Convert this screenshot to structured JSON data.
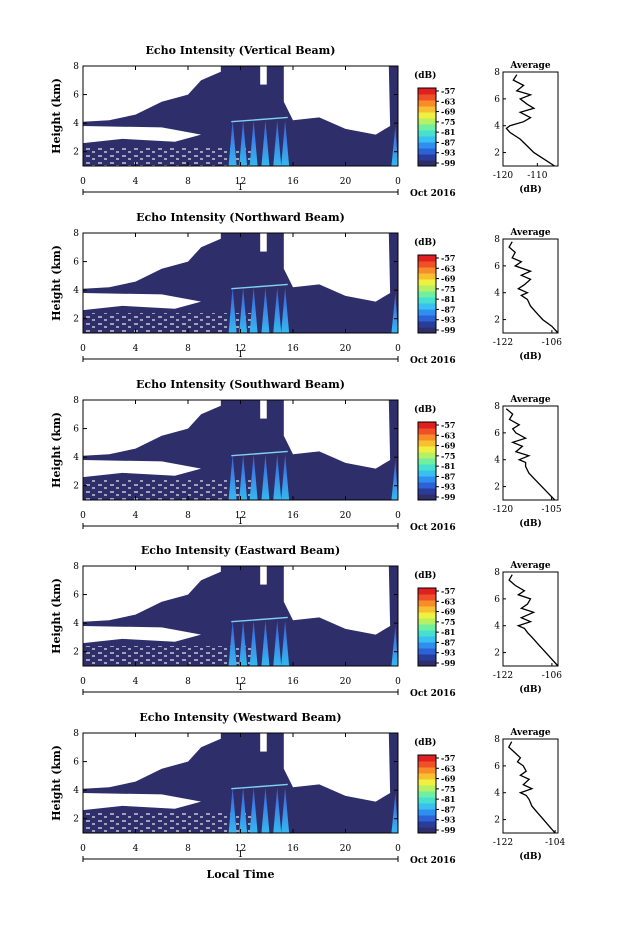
{
  "figure": {
    "xlabel": "Local Time",
    "xticks": [
      "0",
      "4",
      "8",
      "12",
      "16",
      "20",
      "0"
    ],
    "date_label": "Oct 2016",
    "day_label": "1",
    "ylabel": "Height (km)",
    "yticks": [
      "2",
      "4",
      "6",
      "8"
    ],
    "colorbar_unit": "(dB)",
    "colorbar_ticks": [
      "-57",
      "-63",
      "-69",
      "-75",
      "-81",
      "-87",
      "-93",
      "-99"
    ],
    "colorbar_colors": [
      "#2e2f6a",
      "#2a3c9a",
      "#2b62d6",
      "#2f8ff0",
      "#38c0f0",
      "#46e0d0",
      "#6ff0a0",
      "#b6f064",
      "#f0f040",
      "#f8c030",
      "#f88c28",
      "#f05028",
      "#e02020"
    ],
    "avg_title": "Average",
    "avg_xlabel": "(dB)"
  },
  "chart_data": [
    {
      "type": "heatmap",
      "title": "Echo Intensity (Vertical Beam)",
      "xlabel": "",
      "ylabel": "Height (km)",
      "xlim": [
        0,
        24
      ],
      "ylim": [
        1,
        8
      ],
      "colorbar": {
        "label": "(dB)",
        "range": [
          -99,
          -57
        ]
      },
      "profile": {
        "title": "Average",
        "xlabel": "(dB)",
        "xticks": [
          "-120",
          "-110"
        ],
        "xlim": [
          -120,
          -104
        ],
        "height": [
          1.0,
          1.5,
          2.0,
          2.5,
          3.0,
          3.5,
          3.8,
          4.0,
          4.3,
          4.6,
          5.0,
          5.3,
          5.6,
          6.0,
          6.3,
          6.6,
          7.0,
          7.4,
          7.8
        ],
        "values": [
          -105,
          -108,
          -111,
          -113,
          -115,
          -118,
          -119,
          -118,
          -114,
          -112,
          -115,
          -111,
          -113,
          -115,
          -112,
          -116,
          -114,
          -117,
          -116
        ]
      }
    },
    {
      "type": "heatmap",
      "title": "Echo Intensity (Northward Beam)",
      "xlabel": "",
      "ylabel": "Height (km)",
      "xlim": [
        0,
        24
      ],
      "ylim": [
        1,
        8
      ],
      "colorbar": {
        "label": "(dB)",
        "range": [
          -99,
          -57
        ]
      },
      "profile": {
        "title": "Average",
        "xlabel": "(dB)",
        "xticks": [
          "-122",
          "-106"
        ],
        "xlim": [
          -122,
          -104
        ],
        "height": [
          1.0,
          1.5,
          2.0,
          2.5,
          3.0,
          3.5,
          3.8,
          4.0,
          4.3,
          4.6,
          5.0,
          5.3,
          5.6,
          6.0,
          6.3,
          6.6,
          7.0,
          7.4,
          7.8
        ],
        "values": [
          -104,
          -106,
          -109,
          -111,
          -113,
          -114,
          -116,
          -114,
          -117,
          -115,
          -113,
          -116,
          -113,
          -118,
          -116,
          -119,
          -118,
          -120,
          -119
        ]
      }
    },
    {
      "type": "heatmap",
      "title": "Echo Intensity (Southward Beam)",
      "xlabel": "",
      "ylabel": "Height (km)",
      "xlim": [
        0,
        24
      ],
      "ylim": [
        1,
        8
      ],
      "colorbar": {
        "label": "(dB)",
        "range": [
          -99,
          -57
        ]
      },
      "profile": {
        "title": "Average",
        "xlabel": "(dB)",
        "xticks": [
          "-120",
          "-105"
        ],
        "xlim": [
          -120,
          -103
        ],
        "height": [
          1.0,
          1.5,
          2.0,
          2.5,
          3.0,
          3.5,
          3.8,
          4.0,
          4.3,
          4.6,
          5.0,
          5.3,
          5.6,
          6.0,
          6.3,
          6.6,
          7.0,
          7.4,
          7.8
        ],
        "values": [
          -104,
          -106,
          -108,
          -110,
          -112,
          -113,
          -113,
          -115,
          -112,
          -116,
          -114,
          -117,
          -113,
          -116,
          -117,
          -115,
          -118,
          -117,
          -119
        ]
      }
    },
    {
      "type": "heatmap",
      "title": "Echo Intensity (Eastward Beam)",
      "xlabel": "",
      "ylabel": "Height (km)",
      "xlim": [
        0,
        24
      ],
      "ylim": [
        1,
        8
      ],
      "colorbar": {
        "label": "(dB)",
        "range": [
          -99,
          -57
        ]
      },
      "profile": {
        "title": "Average",
        "xlabel": "(dB)",
        "xticks": [
          "-122",
          "-106"
        ],
        "xlim": [
          -122,
          -104
        ],
        "height": [
          1.0,
          1.5,
          2.0,
          2.5,
          3.0,
          3.5,
          3.8,
          4.0,
          4.3,
          4.6,
          5.0,
          5.3,
          5.6,
          6.0,
          6.3,
          6.6,
          7.0,
          7.4,
          7.8
        ],
        "values": [
          -104,
          -106,
          -108,
          -110,
          -112,
          -114,
          -115,
          -117,
          -113,
          -116,
          -112,
          -116,
          -114,
          -113,
          -117,
          -115,
          -118,
          -120,
          -119
        ]
      }
    },
    {
      "type": "heatmap",
      "title": "Echo Intensity (Westward Beam)",
      "xlabel": "Local Time",
      "ylabel": "Height (km)",
      "xlim": [
        0,
        24
      ],
      "ylim": [
        1,
        8
      ],
      "colorbar": {
        "label": "(dB)",
        "range": [
          -99,
          -57
        ]
      },
      "profile": {
        "title": "Average",
        "xlabel": "(dB)",
        "xticks": [
          "-122",
          "-104"
        ],
        "xlim": [
          -122,
          -103
        ],
        "height": [
          1.0,
          1.5,
          2.0,
          2.5,
          3.0,
          3.5,
          3.8,
          4.0,
          4.3,
          4.6,
          5.0,
          5.3,
          5.6,
          6.0,
          6.3,
          6.6,
          7.0,
          7.4,
          7.8
        ],
        "values": [
          -104,
          -106,
          -108,
          -110,
          -112,
          -113,
          -114,
          -116,
          -112,
          -115,
          -113,
          -116,
          -114,
          -115,
          -117,
          -116,
          -118,
          -120,
          -119
        ]
      }
    }
  ]
}
